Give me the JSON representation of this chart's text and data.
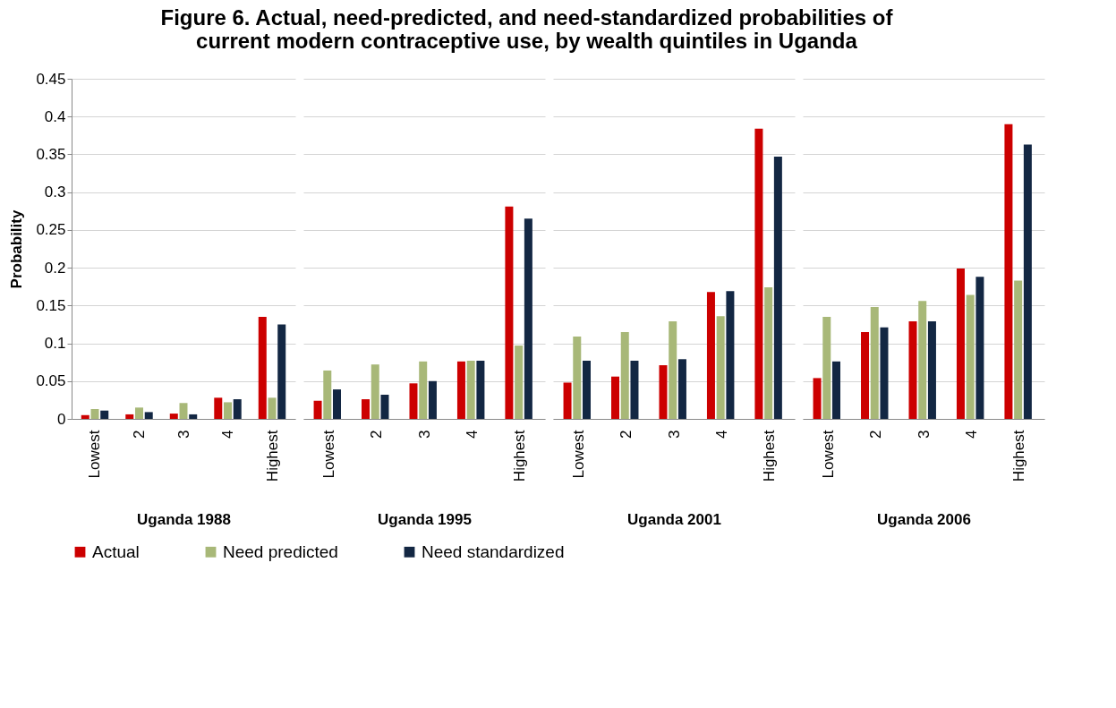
{
  "chart_data": [
    {
      "type": "bar",
      "title": "Figure 6. Actual, need-predicted, and need-standardized probabilities of current modern contraceptive use, by wealth quintiles in Uganda",
      "xlabel": "Uganda 1988",
      "ylabel": "Probability",
      "categories": [
        "Lowest",
        "2",
        "3",
        "4",
        "Highest"
      ],
      "ylim": [
        0,
        0.45
      ],
      "yticks": [
        0,
        0.05,
        0.1,
        0.15,
        0.2,
        0.25,
        0.3,
        0.35,
        0.4,
        0.45
      ],
      "grid": "y",
      "legend": "bottom",
      "series": [
        {
          "name": "Actual",
          "color": "#cc0000",
          "values": [
            0.005,
            0.006,
            0.007,
            0.028,
            0.135
          ]
        },
        {
          "name": "Need predicted",
          "color": "#a8b878",
          "values": [
            0.013,
            0.015,
            0.021,
            0.022,
            0.028
          ]
        },
        {
          "name": "Need standardized",
          "color": "#132743",
          "values": [
            0.011,
            0.009,
            0.006,
            0.026,
            0.125
          ]
        }
      ]
    },
    {
      "type": "bar",
      "xlabel": "Uganda 1995",
      "categories": [
        "Lowest",
        "2",
        "3",
        "4",
        "Highest"
      ],
      "ylim": [
        0,
        0.45
      ],
      "yticks": [
        0,
        0.05,
        0.1,
        0.15,
        0.2,
        0.25,
        0.3,
        0.35,
        0.4,
        0.45
      ],
      "grid": "y",
      "legend": "bottom",
      "tick_labels": "x",
      "series": [
        {
          "name": "Actual",
          "color": "#cc0000",
          "values": [
            0.024,
            0.026,
            0.047,
            0.076,
            0.281
          ]
        },
        {
          "name": "Need predicted",
          "color": "#a8b878",
          "values": [
            0.064,
            0.072,
            0.076,
            0.077,
            0.097
          ]
        },
        {
          "name": "Need standardized",
          "color": "#132743",
          "values": [
            0.039,
            0.032,
            0.05,
            0.077,
            0.265
          ]
        }
      ]
    },
    {
      "type": "bar",
      "xlabel": "Uganda 2001",
      "categories": [
        "Lowest",
        "2",
        "3",
        "4",
        "Highest"
      ],
      "ylim": [
        0,
        0.45
      ],
      "yticks": [
        0,
        0.05,
        0.1,
        0.15,
        0.2,
        0.25,
        0.3,
        0.35,
        0.4,
        0.45
      ],
      "grid": "y",
      "legend": "bottom",
      "tick_labels": "x",
      "series": [
        {
          "name": "Actual",
          "color": "#cc0000",
          "values": [
            0.048,
            0.056,
            0.071,
            0.168,
            0.384
          ]
        },
        {
          "name": "Need predicted",
          "color": "#a8b878",
          "values": [
            0.109,
            0.115,
            0.129,
            0.136,
            0.174
          ]
        },
        {
          "name": "Need standardized",
          "color": "#132743",
          "values": [
            0.077,
            0.077,
            0.079,
            0.169,
            0.347
          ]
        }
      ]
    },
    {
      "type": "bar",
      "xlabel": "Uganda 2006",
      "categories": [
        "Lowest",
        "2",
        "3",
        "4",
        "Highest"
      ],
      "ylim": [
        0,
        0.45
      ],
      "yticks": [
        0,
        0.05,
        0.1,
        0.15,
        0.2,
        0.25,
        0.3,
        0.35,
        0.4,
        0.45
      ],
      "grid": "y",
      "legend": "bottom",
      "tick_labels": "x",
      "series": [
        {
          "name": "Actual",
          "color": "#cc0000",
          "values": [
            0.054,
            0.115,
            0.129,
            0.199,
            0.39
          ]
        },
        {
          "name": "Need predicted",
          "color": "#a8b878",
          "values": [
            0.135,
            0.148,
            0.156,
            0.164,
            0.183
          ]
        },
        {
          "name": "Need standardized",
          "color": "#132743",
          "values": [
            0.076,
            0.121,
            0.129,
            0.188,
            0.363
          ]
        }
      ]
    }
  ]
}
